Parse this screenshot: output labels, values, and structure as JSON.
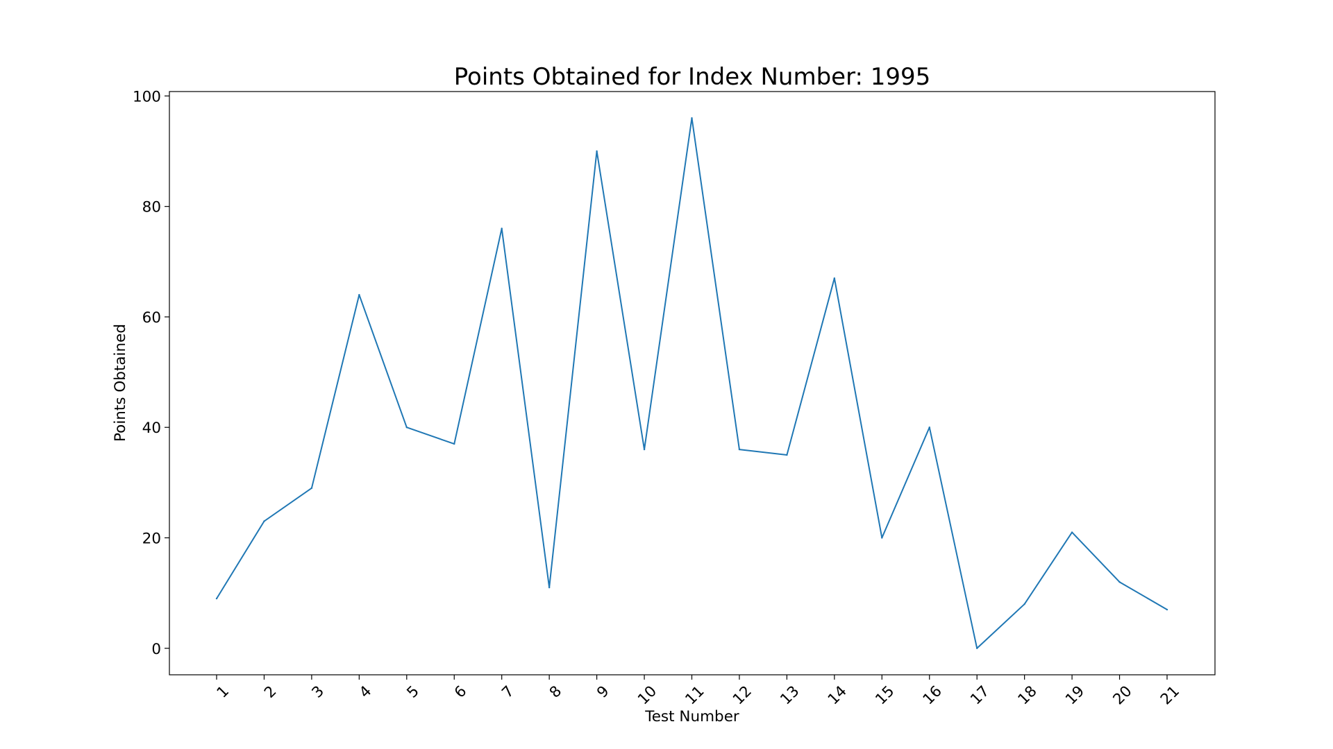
{
  "chart_data": {
    "type": "line",
    "title": "Points Obtained for Index Number: 1995",
    "xlabel": "Test Number",
    "ylabel": "Points Obtained",
    "categories": [
      "1",
      "2",
      "3",
      "4",
      "5",
      "6",
      "7",
      "8",
      "9",
      "10",
      "11",
      "12",
      "13",
      "14",
      "15",
      "16",
      "17",
      "18",
      "19",
      "20",
      "21"
    ],
    "series": [
      {
        "values": [
          9,
          23,
          29,
          64,
          40,
          37,
          76,
          11,
          90,
          36,
          96,
          36,
          35,
          67,
          20,
          40,
          0,
          8,
          21,
          12,
          7
        ],
        "color": "#1f77b4"
      }
    ],
    "ylim": [
      -4.8,
      100.8
    ],
    "yticks": [
      0,
      20,
      40,
      60,
      80,
      100
    ],
    "xtick_rotation": "45",
    "grid": false,
    "legend": "none"
  }
}
